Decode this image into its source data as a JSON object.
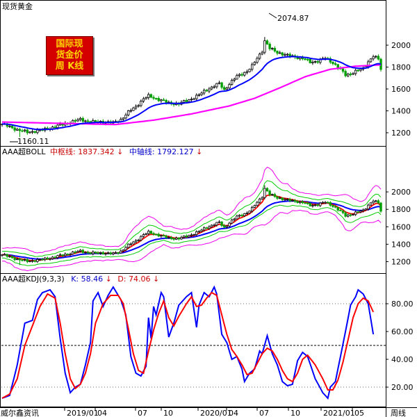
{
  "window": {
    "title": "现货黄金",
    "logo_lines": [
      "国际现",
      "货金价",
      "周 K线"
    ]
  },
  "main_panel": {
    "high_label": "2074.87",
    "low_label": "1160.11"
  },
  "boll_panel": {
    "name": "AAA超BOLL",
    "mid_label": "中枢线: 1837.342",
    "axis_label": "中轴线: 1792.127",
    "arrow": "↓"
  },
  "kdj_panel": {
    "name": "AAA超KDJ(9,3,3)",
    "k_label": "K: 58.46",
    "d_label": "D: 74.06",
    "arrow": "↓"
  },
  "footer": {
    "left_text": "威尔鑫资讯",
    "period": "周线"
  },
  "colors": {
    "up": "#000000",
    "down": "#00a000",
    "ma_blue": "#0000ff",
    "ma_magenta": "#ff00ff",
    "boll_mid": "#ff0000",
    "boll_inner": "#00cc00",
    "boll_outer": "#ee00ee",
    "kdj_k": "#0000ff",
    "kdj_d": "#ff0000",
    "title_red": "#cc0000",
    "title_blue": "#0000cc"
  },
  "chart_data": {
    "type": "candlestick",
    "period": "weekly",
    "x_ticks": [
      "2019/01",
      "04",
      "07",
      "10",
      "2020/01",
      "04",
      "07",
      "10",
      "2021/01",
      "05"
    ],
    "y_ticks_price": [
      2000,
      1800,
      1600,
      1400,
      1200
    ],
    "y_ticks_kdj": [
      80,
      60,
      40,
      20
    ],
    "kdj_ref_lines": [
      20,
      50,
      80
    ],
    "close_anchors": [
      [
        0,
        1280
      ],
      [
        6,
        1228
      ],
      [
        10,
        1205
      ],
      [
        16,
        1225
      ],
      [
        21,
        1255
      ],
      [
        26,
        1290
      ],
      [
        31,
        1322
      ],
      [
        35,
        1298
      ],
      [
        40,
        1300
      ],
      [
        44,
        1290
      ],
      [
        47,
        1320
      ],
      [
        50,
        1388
      ],
      [
        53,
        1440
      ],
      [
        56,
        1510
      ],
      [
        58,
        1535
      ],
      [
        62,
        1505
      ],
      [
        66,
        1470
      ],
      [
        70,
        1465
      ],
      [
        74,
        1500
      ],
      [
        78,
        1545
      ],
      [
        80,
        1578
      ],
      [
        82,
        1605
      ],
      [
        86,
        1650
      ],
      [
        88,
        1590
      ],
      [
        90,
        1648
      ],
      [
        93,
        1715
      ],
      [
        97,
        1762
      ],
      [
        99,
        1808
      ],
      [
        101,
        1880
      ],
      [
        103,
        1950
      ],
      [
        104,
        2040
      ],
      [
        106,
        1970
      ],
      [
        109,
        1935
      ],
      [
        113,
        1905
      ],
      [
        117,
        1890
      ],
      [
        120,
        1870
      ],
      [
        122,
        1845
      ],
      [
        125,
        1855
      ],
      [
        128,
        1882
      ],
      [
        131,
        1840
      ],
      [
        134,
        1775
      ],
      [
        136,
        1728
      ],
      [
        138,
        1740
      ],
      [
        141,
        1770
      ],
      [
        143,
        1785
      ],
      [
        145,
        1850
      ],
      [
        147,
        1900
      ],
      [
        149,
        1870
      ],
      [
        150,
        1778
      ]
    ],
    "ma_slow_anchors": [
      [
        0,
        1298
      ],
      [
        25,
        1285
      ],
      [
        45,
        1275
      ],
      [
        60,
        1315
      ],
      [
        75,
        1372
      ],
      [
        90,
        1445
      ],
      [
        100,
        1515
      ],
      [
        110,
        1610
      ],
      [
        120,
        1712
      ],
      [
        130,
        1780
      ],
      [
        140,
        1808
      ],
      [
        150,
        1820
      ]
    ],
    "kdj_k_anchors": [
      [
        0,
        12
      ],
      [
        3,
        14
      ],
      [
        6,
        36
      ],
      [
        9,
        66
      ],
      [
        12,
        68
      ],
      [
        14,
        83
      ],
      [
        16,
        88
      ],
      [
        19,
        90
      ],
      [
        21,
        85
      ],
      [
        23,
        55
      ],
      [
        25,
        30
      ],
      [
        27,
        16
      ],
      [
        29,
        20
      ],
      [
        31,
        22
      ],
      [
        33,
        36
      ],
      [
        35,
        52
      ],
      [
        36,
        82
      ],
      [
        38,
        88
      ],
      [
        40,
        78
      ],
      [
        42,
        86
      ],
      [
        44,
        92
      ],
      [
        47,
        83
      ],
      [
        49,
        72
      ],
      [
        51,
        42
      ],
      [
        53,
        30
      ],
      [
        55,
        28
      ],
      [
        57,
        35
      ],
      [
        58,
        70
      ],
      [
        59,
        55
      ],
      [
        60,
        78
      ],
      [
        61,
        72
      ],
      [
        63,
        88
      ],
      [
        64,
        85
      ],
      [
        66,
        56
      ],
      [
        68,
        66
      ],
      [
        70,
        79
      ],
      [
        73,
        85
      ],
      [
        75,
        88
      ],
      [
        77,
        63
      ],
      [
        78,
        79
      ],
      [
        80,
        88
      ],
      [
        82,
        85
      ],
      [
        84,
        92
      ],
      [
        85,
        87
      ],
      [
        87,
        58
      ],
      [
        89,
        52
      ],
      [
        91,
        40
      ],
      [
        93,
        42
      ],
      [
        95,
        33
      ],
      [
        96,
        24
      ],
      [
        98,
        30
      ],
      [
        100,
        33
      ],
      [
        102,
        46
      ],
      [
        103,
        44
      ],
      [
        105,
        57
      ],
      [
        107,
        44
      ],
      [
        109,
        36
      ],
      [
        111,
        24
      ],
      [
        113,
        21
      ],
      [
        115,
        22
      ],
      [
        117,
        39
      ],
      [
        119,
        45
      ],
      [
        121,
        42
      ],
      [
        124,
        26
      ],
      [
        127,
        16
      ],
      [
        129,
        12
      ],
      [
        130,
        20
      ],
      [
        132,
        24
      ],
      [
        134,
        42
      ],
      [
        136,
        60
      ],
      [
        138,
        79
      ],
      [
        140,
        85
      ],
      [
        141,
        90
      ],
      [
        143,
        87
      ],
      [
        145,
        80
      ],
      [
        146,
        69
      ],
      [
        147,
        58
      ]
    ],
    "kdj_d_anchors": [
      [
        0,
        12
      ],
      [
        3,
        15
      ],
      [
        6,
        26
      ],
      [
        9,
        50
      ],
      [
        12,
        64
      ],
      [
        15,
        78
      ],
      [
        18,
        87
      ],
      [
        21,
        84
      ],
      [
        23,
        66
      ],
      [
        25,
        44
      ],
      [
        27,
        26
      ],
      [
        29,
        19
      ],
      [
        31,
        22
      ],
      [
        33,
        30
      ],
      [
        35,
        44
      ],
      [
        37,
        66
      ],
      [
        40,
        80
      ],
      [
        43,
        86
      ],
      [
        46,
        86
      ],
      [
        48,
        80
      ],
      [
        50,
        62
      ],
      [
        52,
        44
      ],
      [
        54,
        32
      ],
      [
        56,
        30
      ],
      [
        58,
        46
      ],
      [
        60,
        61
      ],
      [
        62,
        73
      ],
      [
        64,
        82
      ],
      [
        66,
        70
      ],
      [
        68,
        64
      ],
      [
        70,
        71
      ],
      [
        73,
        80
      ],
      [
        75,
        85
      ],
      [
        77,
        78
      ],
      [
        79,
        79
      ],
      [
        81,
        84
      ],
      [
        83,
        88
      ],
      [
        85,
        86
      ],
      [
        87,
        72
      ],
      [
        89,
        58
      ],
      [
        91,
        47
      ],
      [
        93,
        42
      ],
      [
        95,
        36
      ],
      [
        97,
        29
      ],
      [
        99,
        30
      ],
      [
        101,
        37
      ],
      [
        103,
        44
      ],
      [
        105,
        48
      ],
      [
        107,
        46
      ],
      [
        109,
        40
      ],
      [
        111,
        32
      ],
      [
        113,
        26
      ],
      [
        115,
        24
      ],
      [
        117,
        30
      ],
      [
        119,
        40
      ],
      [
        121,
        43
      ],
      [
        124,
        36
      ],
      [
        127,
        26
      ],
      [
        129,
        18
      ],
      [
        131,
        18
      ],
      [
        133,
        25
      ],
      [
        135,
        38
      ],
      [
        137,
        54
      ],
      [
        139,
        70
      ],
      [
        141,
        80
      ],
      [
        143,
        84
      ],
      [
        145,
        82
      ],
      [
        146,
        78
      ],
      [
        147,
        74
      ]
    ]
  }
}
